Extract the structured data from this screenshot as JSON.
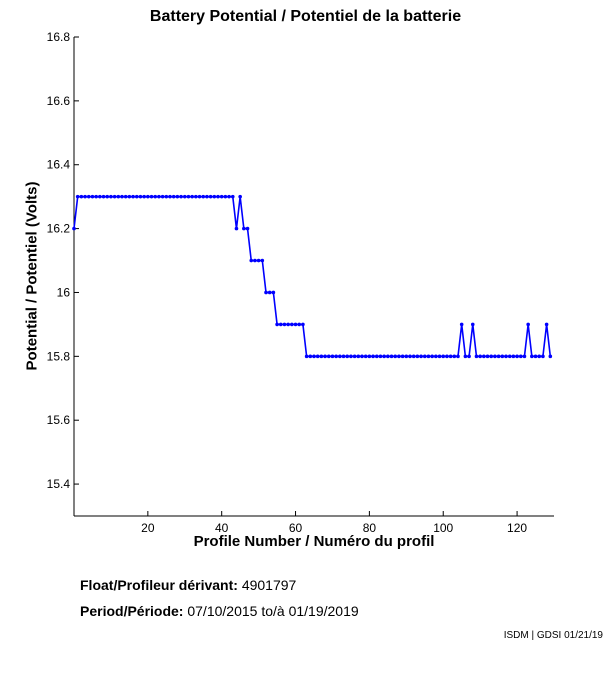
{
  "chart_data": {
    "type": "line",
    "title": "Battery Potential / Potentiel de la batterie",
    "xlabel": "Profile Number / Numéro du profil",
    "ylabel": "Potential / Potentiel (Volts)",
    "xlim": [
      0,
      130
    ],
    "ylim": [
      15.3,
      16.8
    ],
    "xticks": [
      20,
      40,
      60,
      80,
      100,
      120
    ],
    "xtick_labels": [
      "20",
      "40",
      "60",
      "80",
      "100",
      "120"
    ],
    "yticks": [
      15.4,
      15.6,
      15.8,
      16.0,
      16.2,
      16.4,
      16.6,
      16.8
    ],
    "ytick_labels": [
      "15.4",
      "15.6",
      "15.8",
      "16",
      "16.2",
      "16.4",
      "16.6",
      "16.8"
    ],
    "grid": false,
    "line_color": "#0000ff",
    "series": [
      {
        "x": [
          0,
          1,
          2,
          3,
          4,
          5,
          6,
          7,
          8,
          9,
          10,
          11,
          12,
          13,
          14,
          15,
          16,
          17,
          18,
          19,
          20,
          21,
          22,
          23,
          24,
          25,
          26,
          27,
          28,
          29,
          30,
          31,
          32,
          33,
          34,
          35,
          36,
          37,
          38,
          39,
          40,
          41,
          42,
          43,
          44,
          45,
          46,
          47,
          48,
          49,
          50,
          51,
          52,
          53,
          54,
          55,
          56,
          57,
          58,
          59,
          60,
          61,
          62,
          63,
          64,
          65,
          66,
          67,
          68,
          69,
          70,
          71,
          72,
          73,
          74,
          75,
          76,
          77,
          78,
          79,
          80,
          81,
          82,
          83,
          84,
          85,
          86,
          87,
          88,
          89,
          90,
          91,
          92,
          93,
          94,
          95,
          96,
          97,
          98,
          99,
          100,
          101,
          102,
          103,
          104,
          105,
          106,
          107,
          108,
          109,
          110,
          111,
          112,
          113,
          114,
          115,
          116,
          117,
          118,
          119,
          120,
          121,
          122,
          123,
          124,
          125,
          126,
          127,
          128,
          129
        ],
        "y": [
          16.2,
          16.3,
          16.3,
          16.3,
          16.3,
          16.3,
          16.3,
          16.3,
          16.3,
          16.3,
          16.3,
          16.3,
          16.3,
          16.3,
          16.3,
          16.3,
          16.3,
          16.3,
          16.3,
          16.3,
          16.3,
          16.3,
          16.3,
          16.3,
          16.3,
          16.3,
          16.3,
          16.3,
          16.3,
          16.3,
          16.3,
          16.3,
          16.3,
          16.3,
          16.3,
          16.3,
          16.3,
          16.3,
          16.3,
          16.3,
          16.3,
          16.3,
          16.3,
          16.3,
          16.2,
          16.3,
          16.2,
          16.2,
          16.1,
          16.1,
          16.1,
          16.1,
          16.0,
          16.0,
          16.0,
          15.9,
          15.9,
          15.9,
          15.9,
          15.9,
          15.9,
          15.9,
          15.9,
          15.8,
          15.8,
          15.8,
          15.8,
          15.8,
          15.8,
          15.8,
          15.8,
          15.8,
          15.8,
          15.8,
          15.8,
          15.8,
          15.8,
          15.8,
          15.8,
          15.8,
          15.8,
          15.8,
          15.8,
          15.8,
          15.8,
          15.8,
          15.8,
          15.8,
          15.8,
          15.8,
          15.8,
          15.8,
          15.8,
          15.8,
          15.8,
          15.8,
          15.8,
          15.8,
          15.8,
          15.8,
          15.8,
          15.8,
          15.8,
          15.8,
          15.8,
          15.9,
          15.8,
          15.8,
          15.9,
          15.8,
          15.8,
          15.8,
          15.8,
          15.8,
          15.8,
          15.8,
          15.8,
          15.8,
          15.8,
          15.8,
          15.8,
          15.8,
          15.8,
          15.9,
          15.8,
          15.8,
          15.8,
          15.8,
          15.9,
          15.8
        ]
      }
    ]
  },
  "info": {
    "float_label": "Float/Profileur dérivant:",
    "float_value": "4901797",
    "period_label": "Period/Période:",
    "period_start": "07/10/2015",
    "period_sep": "to/à",
    "period_end": "01/19/2019"
  },
  "credit": "ISDM | GDSI 01/21/19"
}
